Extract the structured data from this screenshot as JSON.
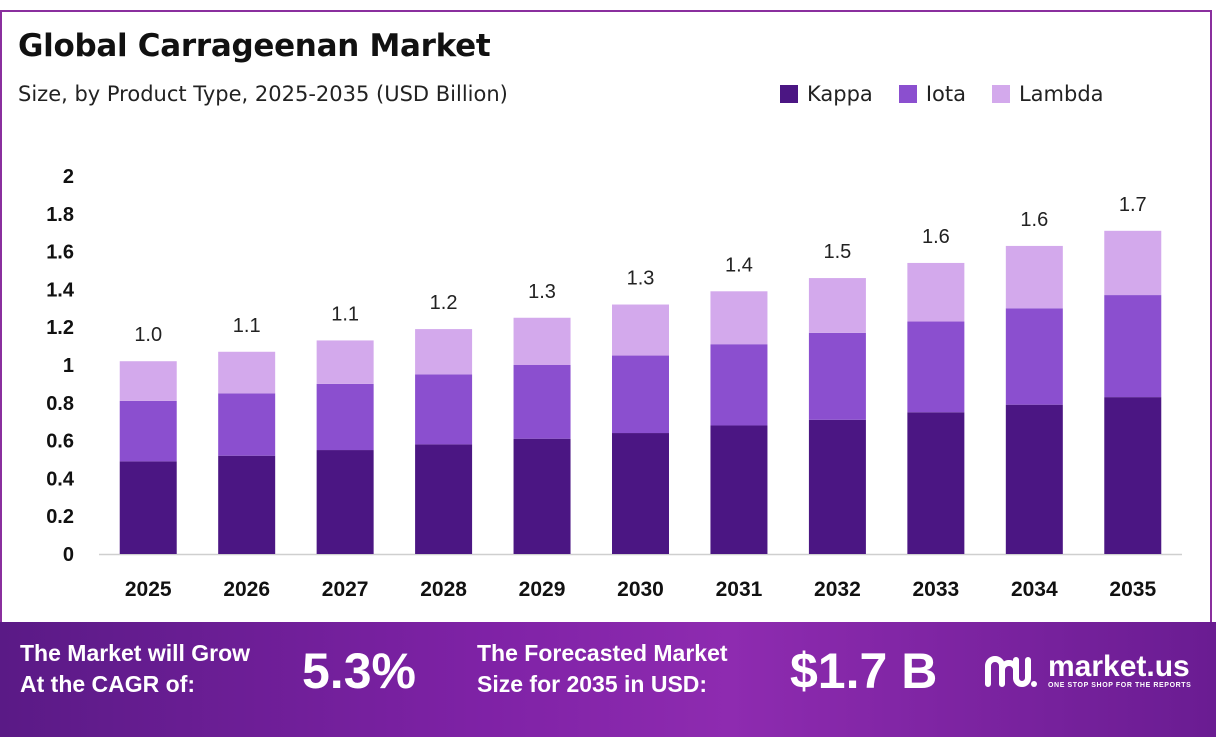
{
  "title": "Global Carrageenan Market",
  "subtitle": "Size, by Product Type, 2025-2035 (USD Billion)",
  "chart_data": {
    "type": "bar",
    "stacked": true,
    "categories": [
      "2025",
      "2026",
      "2027",
      "2028",
      "2029",
      "2030",
      "2031",
      "2032",
      "2033",
      "2034",
      "2035"
    ],
    "series": [
      {
        "name": "Kappa",
        "color": "#4b1683",
        "values": [
          0.49,
          0.52,
          0.55,
          0.58,
          0.61,
          0.64,
          0.68,
          0.71,
          0.75,
          0.79,
          0.83
        ]
      },
      {
        "name": "Iota",
        "color": "#8b4fcf",
        "values": [
          0.32,
          0.33,
          0.35,
          0.37,
          0.39,
          0.41,
          0.43,
          0.46,
          0.48,
          0.51,
          0.54
        ]
      },
      {
        "name": "Lambda",
        "color": "#d3a9ec",
        "values": [
          0.21,
          0.22,
          0.23,
          0.24,
          0.25,
          0.27,
          0.28,
          0.29,
          0.31,
          0.33,
          0.34
        ]
      }
    ],
    "totals_labels": [
      "1.0",
      "1.1",
      "1.1",
      "1.2",
      "1.3",
      "1.3",
      "1.4",
      "1.5",
      "1.6",
      "1.6",
      "1.7"
    ],
    "yticks": [
      "0",
      "0.2",
      "0.4",
      "0.6",
      "0.8",
      "1",
      "1.2",
      "1.4",
      "1.6",
      "1.8",
      "2"
    ],
    "ylim": [
      0,
      2
    ],
    "grid": false,
    "legend_position": "top-right"
  },
  "footer": {
    "cagr_label_line1": "The Market will Grow",
    "cagr_label_line2": "At the CAGR of:",
    "cagr_value": "5.3%",
    "forecast_label_line1": "The Forecasted Market",
    "forecast_label_line2": "Size for 2035 in USD:",
    "forecast_value": "$1.7 B",
    "brand_name": "market.us",
    "brand_tagline": "ONE STOP SHOP FOR THE REPORTS"
  }
}
